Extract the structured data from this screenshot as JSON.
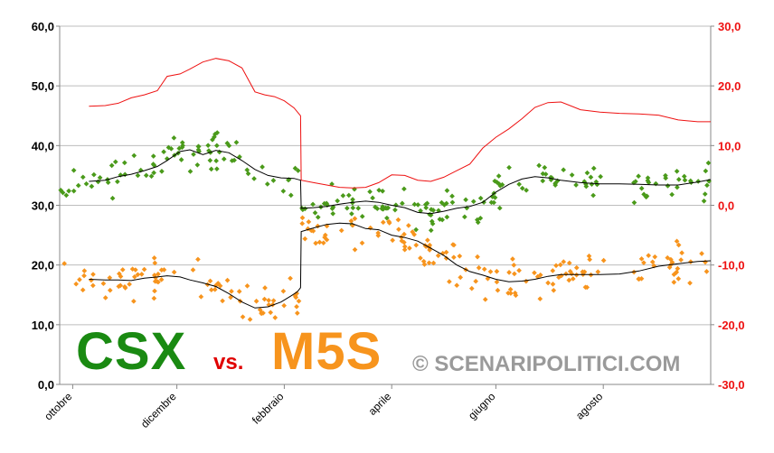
{
  "chart_data": {
    "type": "line",
    "left_axis": {
      "ticks": [
        "0,0",
        "10,0",
        "20,0",
        "30,0",
        "40,0",
        "50,0",
        "60,0"
      ],
      "ylim": [
        0,
        60
      ],
      "color": "#000000"
    },
    "right_axis": {
      "ticks": [
        "-30,0",
        "-20,0",
        "-10,0",
        "0,0",
        "10,0",
        "20,0",
        "30,0"
      ],
      "ylim": [
        -30,
        30
      ],
      "color": "#ee1111"
    },
    "x_ticks": [
      "ottobre",
      "dicembre",
      "febbraio",
      "aprile",
      "giugno",
      "agosto"
    ],
    "grid": true,
    "series": [
      {
        "color": "#ee1111",
        "axis": "right",
        "style": "line",
        "x": [
          0.045,
          0.07,
          0.09,
          0.11,
          0.13,
          0.15,
          0.165,
          0.185,
          0.2,
          0.22,
          0.24,
          0.26,
          0.28,
          0.3,
          0.315,
          0.33,
          0.345,
          0.36,
          0.37,
          0.371,
          0.39,
          0.41,
          0.43,
          0.45,
          0.47,
          0.49,
          0.51,
          0.53,
          0.55,
          0.57,
          0.59,
          0.61,
          0.63,
          0.65,
          0.67,
          0.69,
          0.71,
          0.73,
          0.75,
          0.77,
          0.8,
          0.83,
          0.86,
          0.89,
          0.92,
          0.95,
          0.98,
          1.0
        ],
        "y": [
          16.6,
          16.7,
          17.1,
          18.0,
          18.5,
          19.2,
          21.6,
          22.0,
          22.8,
          24.0,
          24.6,
          24.2,
          23.0,
          19.0,
          18.5,
          18.2,
          17.5,
          16.3,
          15.0,
          4.2,
          3.8,
          3.4,
          3.0,
          2.9,
          3.0,
          3.8,
          5.1,
          5.0,
          4.2,
          4.0,
          4.7,
          5.8,
          6.9,
          9.6,
          11.4,
          12.8,
          14.5,
          16.4,
          17.2,
          17.3,
          16.0,
          15.6,
          15.4,
          15.3,
          15.1,
          14.3,
          14.0,
          14.0
        ]
      },
      {
        "color": "#000000",
        "axis": "left",
        "style": "line",
        "x": [
          0.045,
          0.07,
          0.09,
          0.11,
          0.13,
          0.15,
          0.165,
          0.185,
          0.2,
          0.22,
          0.24,
          0.26,
          0.28,
          0.3,
          0.32,
          0.34,
          0.36,
          0.37,
          0.371,
          0.39,
          0.41,
          0.43,
          0.45,
          0.47,
          0.49,
          0.51,
          0.53,
          0.55,
          0.57,
          0.59,
          0.61,
          0.63,
          0.65,
          0.67,
          0.69,
          0.71,
          0.73,
          0.75,
          0.77,
          0.8,
          0.83,
          0.86,
          0.89,
          0.92,
          0.95,
          0.98,
          1.0
        ],
        "y": [
          34.0,
          34.2,
          34.8,
          35.2,
          35.8,
          36.5,
          37.5,
          39.0,
          39.3,
          38.5,
          39.2,
          38.8,
          37.5,
          36.0,
          35.0,
          34.6,
          34.5,
          34.2,
          29.5,
          29.6,
          29.8,
          30.2,
          30.5,
          30.7,
          30.5,
          30.0,
          29.6,
          28.8,
          28.6,
          29.0,
          29.5,
          29.8,
          30.5,
          32.2,
          33.5,
          34.4,
          34.8,
          34.6,
          34.2,
          33.8,
          33.6,
          33.6,
          33.5,
          33.4,
          33.4,
          33.9,
          34.3
        ]
      },
      {
        "color": "#000000",
        "axis": "left",
        "style": "line",
        "x": [
          0.045,
          0.07,
          0.09,
          0.11,
          0.13,
          0.15,
          0.165,
          0.185,
          0.2,
          0.22,
          0.24,
          0.26,
          0.28,
          0.3,
          0.32,
          0.34,
          0.355,
          0.365,
          0.37,
          0.371,
          0.39,
          0.41,
          0.43,
          0.45,
          0.47,
          0.49,
          0.51,
          0.53,
          0.55,
          0.57,
          0.59,
          0.61,
          0.63,
          0.65,
          0.67,
          0.69,
          0.71,
          0.73,
          0.75,
          0.77,
          0.8,
          0.83,
          0.86,
          0.89,
          0.92,
          0.95,
          0.98,
          1.0
        ],
        "y": [
          17.6,
          17.5,
          17.5,
          17.4,
          17.8,
          18.0,
          18.2,
          18.0,
          17.5,
          17.0,
          16.4,
          15.2,
          13.8,
          12.8,
          13.0,
          13.8,
          14.8,
          15.5,
          16.2,
          25.6,
          26.2,
          26.8,
          27.0,
          26.9,
          26.1,
          25.9,
          25.0,
          24.6,
          24.0,
          22.8,
          21.6,
          20.0,
          18.9,
          18.3,
          17.6,
          17.2,
          17.3,
          17.6,
          18.1,
          18.4,
          18.4,
          18.4,
          18.5,
          19.0,
          19.8,
          20.2,
          20.6,
          20.7
        ]
      }
    ],
    "scatter_series": [
      {
        "color": "#4a9a1a",
        "axis": "left",
        "center_index": 1,
        "spread": 2.3
      },
      {
        "color": "#f7941d",
        "axis": "left",
        "center_index": 2,
        "spread": 2.5
      }
    ]
  },
  "labels": {
    "party_left": "CSX",
    "vs": "vs.",
    "party_right": "M5S",
    "copyright": "© SCENARIPOLITICI.COM"
  }
}
